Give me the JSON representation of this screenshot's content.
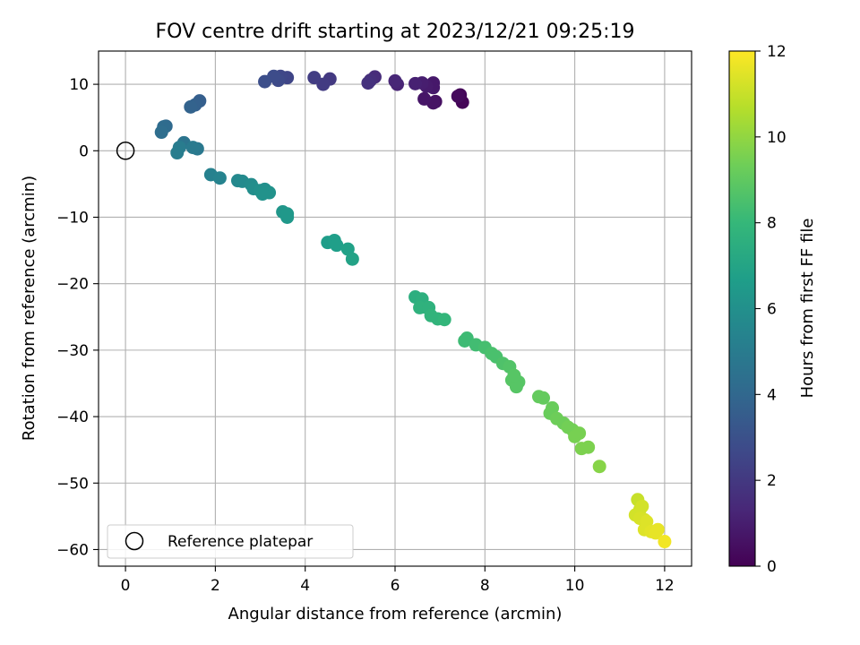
{
  "chart_data": {
    "type": "scatter",
    "title": "FOV centre drift starting at 2023/12/21 09:25:19",
    "xlabel": "Angular distance from reference (arcmin)",
    "ylabel": "Rotation from reference (arcmin)",
    "xlim": [
      -0.6,
      12.6
    ],
    "ylim": [
      -62.5,
      15
    ],
    "xticks": [
      0,
      2,
      4,
      6,
      8,
      10,
      12
    ],
    "yticks": [
      10,
      0,
      -10,
      -20,
      -30,
      -40,
      -50,
      -60
    ],
    "grid": true,
    "legend": {
      "placement": "lower-left",
      "entries": [
        "Reference platepar"
      ]
    },
    "reference_point": {
      "x": 0,
      "y": 0,
      "marker": "hollow-circle",
      "color": "#000000"
    },
    "colorbar": {
      "label": "Hours from first FF file",
      "range": [
        0,
        12
      ],
      "ticks": [
        0,
        2,
        4,
        6,
        8,
        10,
        12
      ],
      "colormap": "viridis",
      "colormap_stops": [
        "#440154",
        "#482878",
        "#3e4989",
        "#31688e",
        "#26828e",
        "#1f9e89",
        "#35b779",
        "#6ece58",
        "#b5de2b",
        "#fde725"
      ]
    },
    "points": [
      {
        "x": 7.5,
        "y": 7.3,
        "h": 0.1
      },
      {
        "x": 7.45,
        "y": 8.4,
        "h": 0.2
      },
      {
        "x": 7.4,
        "y": 8.2,
        "h": 0.3
      },
      {
        "x": 6.9,
        "y": 7.4,
        "h": 0.5
      },
      {
        "x": 6.85,
        "y": 7.2,
        "h": 0.6
      },
      {
        "x": 6.65,
        "y": 7.8,
        "h": 0.7
      },
      {
        "x": 6.85,
        "y": 9.5,
        "h": 0.8
      },
      {
        "x": 6.85,
        "y": 10.2,
        "h": 0.8
      },
      {
        "x": 6.7,
        "y": 9.7,
        "h": 0.9
      },
      {
        "x": 6.6,
        "y": 10.2,
        "h": 1.0
      },
      {
        "x": 6.45,
        "y": 10.1,
        "h": 1.1
      },
      {
        "x": 6.05,
        "y": 10.0,
        "h": 1.2
      },
      {
        "x": 6.0,
        "y": 10.5,
        "h": 1.3
      },
      {
        "x": 5.55,
        "y": 11.1,
        "h": 1.5
      },
      {
        "x": 5.45,
        "y": 10.6,
        "h": 1.6
      },
      {
        "x": 5.4,
        "y": 10.2,
        "h": 1.7
      },
      {
        "x": 4.55,
        "y": 10.8,
        "h": 2.0
      },
      {
        "x": 4.4,
        "y": 10.0,
        "h": 2.1
      },
      {
        "x": 4.2,
        "y": 11.0,
        "h": 2.2
      },
      {
        "x": 3.6,
        "y": 11.0,
        "h": 2.5
      },
      {
        "x": 3.45,
        "y": 11.2,
        "h": 2.6
      },
      {
        "x": 3.4,
        "y": 10.6,
        "h": 2.7
      },
      {
        "x": 3.3,
        "y": 11.2,
        "h": 2.8
      },
      {
        "x": 3.1,
        "y": 10.4,
        "h": 2.9
      },
      {
        "x": 1.65,
        "y": 7.5,
        "h": 3.6
      },
      {
        "x": 1.55,
        "y": 6.9,
        "h": 3.7
      },
      {
        "x": 1.45,
        "y": 6.6,
        "h": 3.8
      },
      {
        "x": 0.9,
        "y": 3.7,
        "h": 4.1
      },
      {
        "x": 0.85,
        "y": 3.6,
        "h": 4.2
      },
      {
        "x": 0.8,
        "y": 2.8,
        "h": 4.3
      },
      {
        "x": 1.3,
        "y": 1.2,
        "h": 4.6
      },
      {
        "x": 1.6,
        "y": 0.3,
        "h": 4.8
      },
      {
        "x": 1.5,
        "y": 0.5,
        "h": 4.9
      },
      {
        "x": 1.2,
        "y": 0.5,
        "h": 5.0
      },
      {
        "x": 1.15,
        "y": -0.3,
        "h": 5.1
      },
      {
        "x": 1.9,
        "y": -3.6,
        "h": 5.3
      },
      {
        "x": 2.1,
        "y": -4.1,
        "h": 5.4
      },
      {
        "x": 2.5,
        "y": -4.5,
        "h": 5.6
      },
      {
        "x": 2.6,
        "y": -4.6,
        "h": 5.7
      },
      {
        "x": 2.8,
        "y": -5.1,
        "h": 5.8
      },
      {
        "x": 2.85,
        "y": -5.7,
        "h": 5.9
      },
      {
        "x": 3.0,
        "y": -6.0,
        "h": 6.0
      },
      {
        "x": 3.1,
        "y": -5.8,
        "h": 6.0
      },
      {
        "x": 3.2,
        "y": -6.3,
        "h": 6.1
      },
      {
        "x": 3.05,
        "y": -6.5,
        "h": 6.1
      },
      {
        "x": 3.5,
        "y": -9.2,
        "h": 6.3
      },
      {
        "x": 3.6,
        "y": -9.5,
        "h": 6.4
      },
      {
        "x": 3.6,
        "y": -10.0,
        "h": 6.4
      },
      {
        "x": 4.5,
        "y": -13.8,
        "h": 6.6
      },
      {
        "x": 4.65,
        "y": -13.5,
        "h": 6.7
      },
      {
        "x": 4.7,
        "y": -14.2,
        "h": 6.7
      },
      {
        "x": 4.95,
        "y": -14.8,
        "h": 6.8
      },
      {
        "x": 5.05,
        "y": -16.3,
        "h": 6.9
      },
      {
        "x": 6.45,
        "y": -22.0,
        "h": 7.5
      },
      {
        "x": 6.6,
        "y": -22.3,
        "h": 7.6
      },
      {
        "x": 6.65,
        "y": -23.5,
        "h": 7.6
      },
      {
        "x": 6.55,
        "y": -23.6,
        "h": 7.7
      },
      {
        "x": 6.75,
        "y": -23.6,
        "h": 7.7
      },
      {
        "x": 6.8,
        "y": -24.8,
        "h": 7.8
      },
      {
        "x": 6.95,
        "y": -25.3,
        "h": 7.8
      },
      {
        "x": 7.1,
        "y": -25.4,
        "h": 7.9
      },
      {
        "x": 7.55,
        "y": -28.6,
        "h": 8.2
      },
      {
        "x": 7.6,
        "y": -28.2,
        "h": 8.2
      },
      {
        "x": 7.8,
        "y": -29.2,
        "h": 8.3
      },
      {
        "x": 8.0,
        "y": -29.6,
        "h": 8.4
      },
      {
        "x": 8.15,
        "y": -30.5,
        "h": 8.5
      },
      {
        "x": 8.25,
        "y": -31.0,
        "h": 8.5
      },
      {
        "x": 8.4,
        "y": -32.0,
        "h": 8.6
      },
      {
        "x": 8.55,
        "y": -32.5,
        "h": 8.7
      },
      {
        "x": 8.6,
        "y": -34.5,
        "h": 8.8
      },
      {
        "x": 8.75,
        "y": -34.8,
        "h": 8.8
      },
      {
        "x": 8.7,
        "y": -35.5,
        "h": 8.8
      },
      {
        "x": 8.65,
        "y": -33.8,
        "h": 8.8
      },
      {
        "x": 9.2,
        "y": -37.0,
        "h": 9.1
      },
      {
        "x": 9.3,
        "y": -37.2,
        "h": 9.1
      },
      {
        "x": 9.5,
        "y": -38.7,
        "h": 9.2
      },
      {
        "x": 9.45,
        "y": -39.5,
        "h": 9.2
      },
      {
        "x": 9.6,
        "y": -40.3,
        "h": 9.3
      },
      {
        "x": 9.75,
        "y": -41.0,
        "h": 9.3
      },
      {
        "x": 9.85,
        "y": -41.6,
        "h": 9.4
      },
      {
        "x": 9.95,
        "y": -42.0,
        "h": 9.4
      },
      {
        "x": 10.0,
        "y": -43.0,
        "h": 9.5
      },
      {
        "x": 10.1,
        "y": -42.5,
        "h": 9.5
      },
      {
        "x": 10.15,
        "y": -44.8,
        "h": 9.6
      },
      {
        "x": 10.3,
        "y": -44.6,
        "h": 9.6
      },
      {
        "x": 10.55,
        "y": -47.5,
        "h": 9.8
      },
      {
        "x": 11.4,
        "y": -52.5,
        "h": 11.0
      },
      {
        "x": 11.45,
        "y": -54.0,
        "h": 11.1
      },
      {
        "x": 11.5,
        "y": -53.5,
        "h": 11.2
      },
      {
        "x": 11.35,
        "y": -54.8,
        "h": 11.2
      },
      {
        "x": 11.45,
        "y": -55.3,
        "h": 11.3
      },
      {
        "x": 11.55,
        "y": -55.5,
        "h": 11.3
      },
      {
        "x": 11.6,
        "y": -55.8,
        "h": 11.4
      },
      {
        "x": 11.55,
        "y": -57.0,
        "h": 11.4
      },
      {
        "x": 11.7,
        "y": -57.3,
        "h": 11.5
      },
      {
        "x": 11.8,
        "y": -57.5,
        "h": 11.6
      },
      {
        "x": 11.85,
        "y": -57.0,
        "h": 11.6
      },
      {
        "x": 12.0,
        "y": -58.8,
        "h": 11.8
      }
    ]
  }
}
